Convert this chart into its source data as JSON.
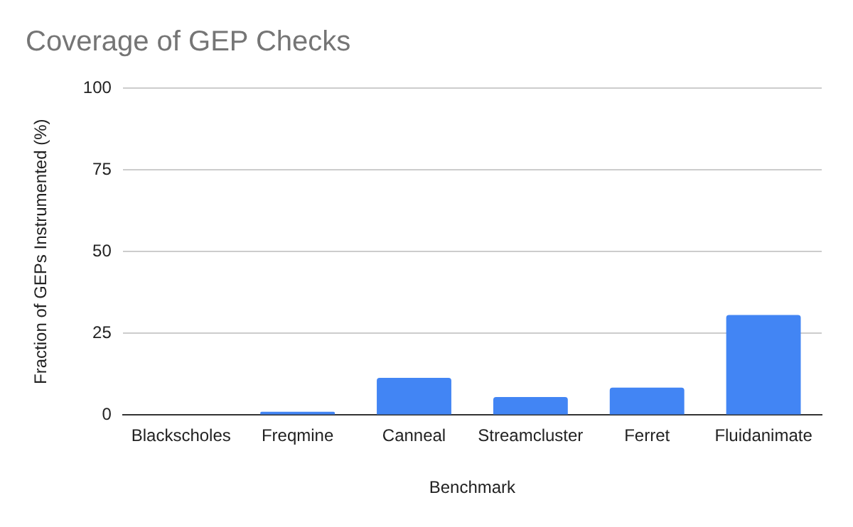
{
  "chart_data": {
    "type": "bar",
    "title": "Coverage of GEP Checks",
    "xlabel": "Benchmark",
    "ylabel": "Fraction of GEPs Instrumented (%)",
    "categories": [
      "Blackscholes",
      "Freqmine",
      "Canneal",
      "Streamcluster",
      "Ferret",
      "Fluidanimate"
    ],
    "values": [
      0,
      1.0,
      11.4,
      5.5,
      8.4,
      30.6
    ],
    "color": "#4285f4",
    "ylim": [
      0,
      100
    ],
    "yticks": [
      0,
      25,
      50,
      75,
      100
    ],
    "grid": "y",
    "legend": false
  }
}
